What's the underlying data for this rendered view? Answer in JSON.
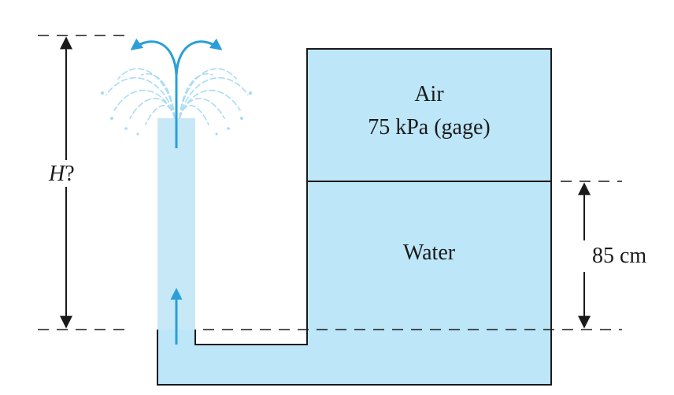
{
  "labels": {
    "height": "H",
    "height_suffix": "?",
    "air": "Air",
    "air_pressure": "75 kPa (gage)",
    "water": "Water",
    "water_depth": "85 cm"
  },
  "colors": {
    "water": "#bde6f8",
    "jet": "#c6e8f7",
    "outline": "#1a1a1a",
    "arrow": "#2a9fd8",
    "dimension": "#1a1a1a"
  }
}
